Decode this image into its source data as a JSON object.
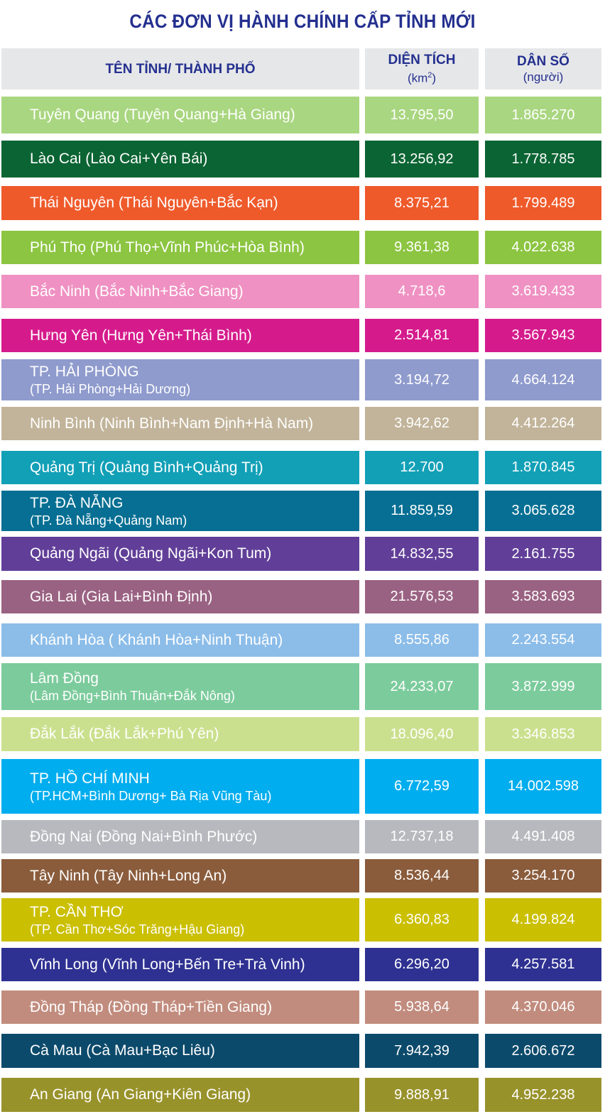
{
  "title": "CÁC ĐƠN VỊ HÀNH CHÍNH CẤP TỈNH MỚI",
  "header": {
    "name": "TÊN TỈNH/ THÀNH PHỐ",
    "area": "DIỆN TÍCH",
    "area_unit": "(km",
    "area_unit_sup": "2",
    "area_unit_close": ")",
    "pop": "DÂN SỐ",
    "pop_unit": "(người)"
  },
  "rows": [
    {
      "line1": "Tuyên Quang (Tuyên Quang+Hà Giang)",
      "line2": "",
      "area": "13.795,50",
      "pop": "1.865.270",
      "color": "#a9d680"
    },
    {
      "line1": "Lào Cai (Lào Cai+Yên Bái)",
      "line2": "",
      "area": "13.256,92",
      "pop": "1.778.785",
      "color": "#0b6433"
    },
    {
      "line1": "Thái Nguyên (Thái Nguyên+Bắc Kạn)",
      "line2": "",
      "area": "8.375,21",
      "pop": "1.799.489",
      "color": "#ef5a2b"
    },
    {
      "line1": "Phú Thọ (Phú Thọ+Vĩnh Phúc+Hòa Bình)",
      "line2": "",
      "area": "9.361,38",
      "pop": "4.022.638",
      "color": "#8cc541"
    },
    {
      "line1": "Bắc Ninh (Bắc Ninh+Bắc Giang)",
      "line2": "",
      "area": "4.718,6",
      "pop": "3.619.433",
      "color": "#ef91c2"
    },
    {
      "line1": "Hưng Yên (Hưng Yên+Thái Bình)",
      "line2": "",
      "area": "2.514,81",
      "pop": "3.567.943",
      "color": "#d51b8c"
    },
    {
      "line1": "TP. HẢI PHÒNG",
      "line2": "(TP. Hải Phòng+Hải Dương)",
      "area": "3.194,72",
      "pop": "4.664.124",
      "color": "#8f9bcd"
    },
    {
      "line1": "Ninh Bình (Ninh Bình+Nam Định+Hà Nam)",
      "line2": "",
      "area": "3.942,62",
      "pop": "4.412.264",
      "color": "#c2b49a"
    },
    {
      "line1": "Quảng Trị (Quảng Bình+Quảng Trị)",
      "line2": "",
      "area": "12.700",
      "pop": "1.870.845",
      "color": "#12a0b7"
    },
    {
      "line1": "TP. ĐÀ NẴNG",
      "line2": "(TP. Đà Nẵng+Quảng Nam)",
      "area": "11.859,59",
      "pop": "3.065.628",
      "color": "#066f93"
    },
    {
      "line1": "Quảng Ngãi (Quảng Ngãi+Kon Tum)",
      "line2": "",
      "area": "14.832,55",
      "pop": "2.161.755",
      "color": "#613f98"
    },
    {
      "line1": "Gia Lai (Gia Lai+Bình Định)",
      "line2": "",
      "area": "21.576,53",
      "pop": "3.583.693",
      "color": "#9a6282"
    },
    {
      "line1": "Khánh Hòa ( Khánh Hòa+Ninh Thuận)",
      "line2": "",
      "area": "8.555,86",
      "pop": "2.243.554",
      "color": "#8cbde9"
    },
    {
      "line1": "Lâm Đồng",
      "line2": "(Lâm Đồng+Bình Thuận+Đắk Nông)",
      "area": "24.233,07",
      "pop": "3.872.999",
      "color": "#7ccb9c"
    },
    {
      "line1": "Đắk Lắk (Đắk Lắk+Phú Yên)",
      "line2": "",
      "area": "18.096,40",
      "pop": "3.346.853",
      "color": "#cbe08e"
    },
    {
      "line1": "TP. HỒ CHÍ MINH",
      "line2": "(TP.HCM+Bình Dương+ Bà Rịa Vũng Tàu)",
      "area": "6.772,59",
      "pop": "14.002.598",
      "color": "#00adee"
    },
    {
      "line1": "Đồng Nai (Đồng Nai+Bình Phước)",
      "line2": "",
      "area": "12.737,18",
      "pop": "4.491.408",
      "color": "#b7b9be"
    },
    {
      "line1": "Tây Ninh (Tây Ninh+Long An)",
      "line2": "",
      "area": "8.536,44",
      "pop": "3.254.170",
      "color": "#8a5c3c"
    },
    {
      "line1": "TP. CẦN THƠ",
      "line2": "(TP. Cần Thơ+Sóc Trăng+Hậu Giang)",
      "area": "6.360,83",
      "pop": "4.199.824",
      "color": "#cbbf02"
    },
    {
      "line1": "Vĩnh Long (Vĩnh Long+Bến Tre+Trà Vinh)",
      "line2": "",
      "area": "6.296,20",
      "pop": "4.257.581",
      "color": "#2e3191"
    },
    {
      "line1": "Đồng Tháp (Đồng Tháp+Tiền Giang)",
      "line2": "",
      "area": "5.938,64",
      "pop": "4.370.046",
      "color": "#c18c7e"
    },
    {
      "line1": "Cà Mau (Cà Mau+Bạc Liêu)",
      "line2": "",
      "area": "7.942,39",
      "pop": "2.606.672",
      "color": "#0c4a6b"
    },
    {
      "line1": "An Giang (An Giang+Kiên Giang)",
      "line2": "",
      "area": "9.888,91",
      "pop": "4.952.238",
      "color": "#98922b"
    }
  ]
}
